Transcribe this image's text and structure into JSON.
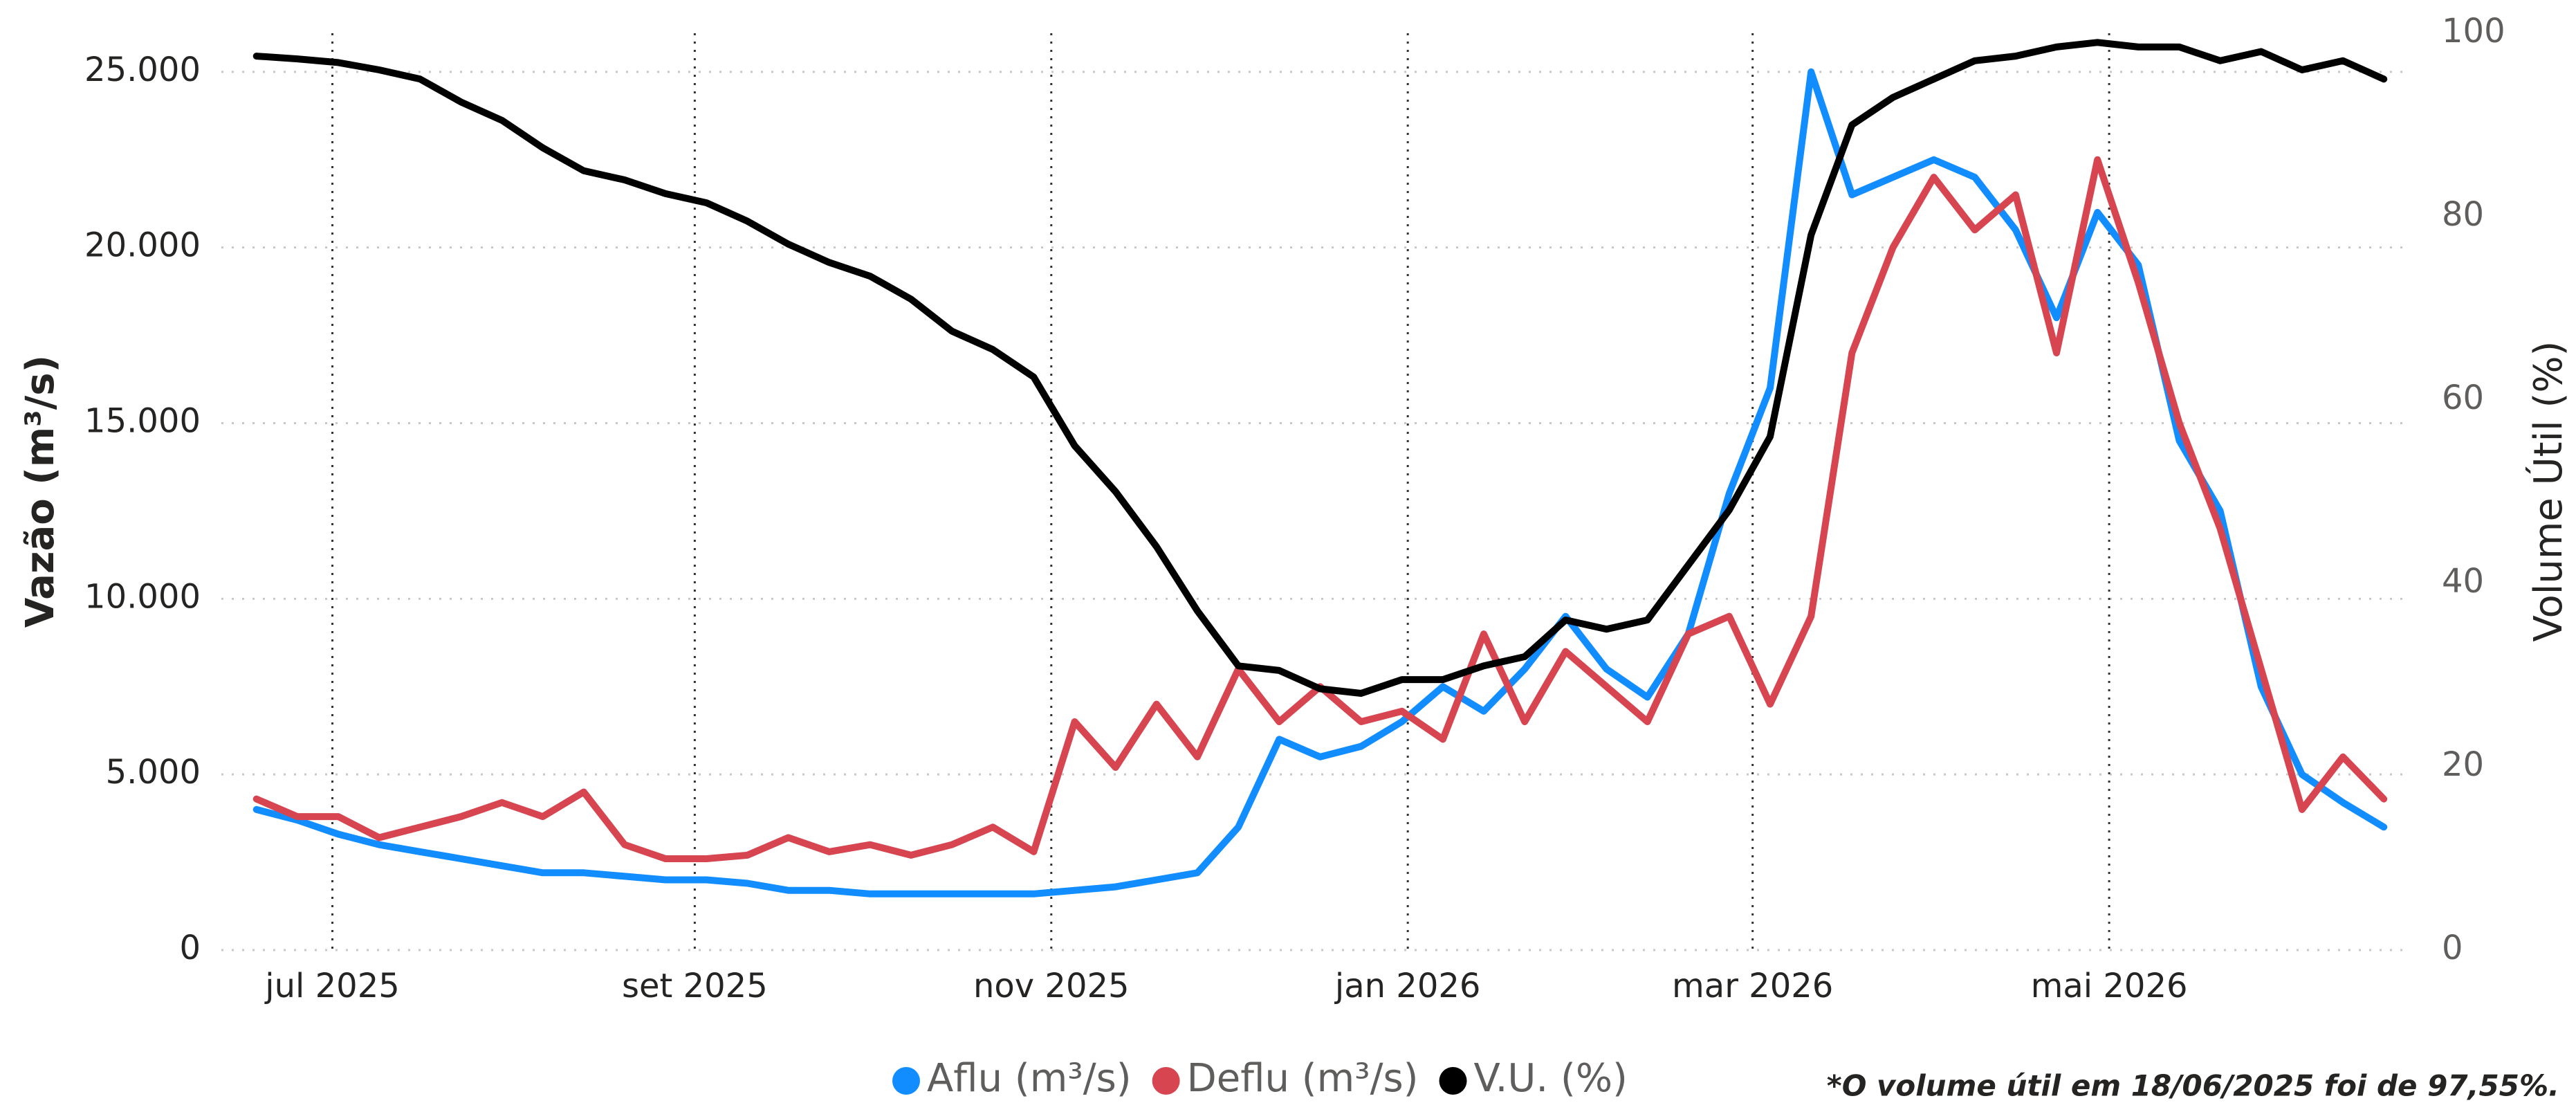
{
  "chart_data": {
    "type": "line",
    "x": [
      "2025-06-18",
      "2025-06-25",
      "2025-07-02",
      "2025-07-09",
      "2025-07-16",
      "2025-07-23",
      "2025-07-30",
      "2025-08-06",
      "2025-08-13",
      "2025-08-20",
      "2025-08-27",
      "2025-09-03",
      "2025-09-10",
      "2025-09-17",
      "2025-09-24",
      "2025-10-01",
      "2025-10-08",
      "2025-10-15",
      "2025-10-22",
      "2025-10-29",
      "2025-11-05",
      "2025-11-12",
      "2025-11-19",
      "2025-11-26",
      "2025-12-03",
      "2025-12-10",
      "2025-12-17",
      "2025-12-24",
      "2025-12-31",
      "2026-01-07",
      "2026-01-14",
      "2026-01-21",
      "2026-01-28",
      "2026-02-04",
      "2026-02-11",
      "2026-02-18",
      "2026-02-25",
      "2026-03-04",
      "2026-03-11",
      "2026-03-18",
      "2026-03-25",
      "2026-04-01",
      "2026-04-08",
      "2026-04-15",
      "2026-04-22",
      "2026-04-29",
      "2026-05-06",
      "2026-05-13",
      "2026-05-20",
      "2026-05-27",
      "2026-06-03",
      "2026-06-10",
      "2026-06-17"
    ],
    "series": [
      {
        "name": "Aflu (m³/s)",
        "color": "#118DFF",
        "values": [
          4000,
          3700,
          3300,
          3000,
          2800,
          2600,
          2400,
          2200,
          2200,
          2100,
          2000,
          2000,
          1900,
          1700,
          1700,
          1600,
          1600,
          1600,
          1600,
          1600,
          1700,
          1800,
          2000,
          2200,
          3500,
          6000,
          5500,
          5800,
          6500,
          7500,
          6800,
          8000,
          9500,
          8000,
          7200,
          9000,
          13000,
          16000,
          25000,
          21500,
          22000,
          22500,
          22000,
          20500,
          18000,
          21000,
          19500,
          14500,
          12500,
          7500,
          5000,
          4200,
          3500
        ]
      },
      {
        "name": "Deflu (m³/s)",
        "color": "#D64550",
        "values": [
          4300,
          3800,
          3800,
          3200,
          3500,
          3800,
          4200,
          3800,
          4500,
          3000,
          2600,
          2600,
          2700,
          3200,
          2800,
          3000,
          2700,
          3000,
          3500,
          2800,
          6500,
          5200,
          7000,
          5500,
          8000,
          6500,
          7500,
          6500,
          6800,
          6000,
          9000,
          6500,
          8500,
          7500,
          6500,
          9000,
          9500,
          7000,
          9500,
          17000,
          20000,
          22000,
          20500,
          21500,
          17000,
          22500,
          19000,
          15000,
          12000,
          8000,
          4000,
          5500,
          4300
        ]
      },
      {
        "name": "V.U. (%)",
        "color": "#000000",
        "axis": "y2",
        "values": [
          97.5,
          97.2,
          96.8,
          96,
          95,
          92.5,
          90.5,
          87.5,
          85,
          84,
          82.5,
          81.5,
          79.5,
          77,
          75,
          73.5,
          71,
          67.5,
          65.5,
          62.5,
          55,
          50,
          44,
          37,
          31,
          30.5,
          28.5,
          28,
          29.5,
          29.5,
          31,
          32,
          36,
          35,
          36,
          42,
          48,
          56,
          78,
          90,
          93,
          95,
          97,
          97.5,
          98.5,
          99,
          98.5,
          98.5,
          97,
          98,
          96,
          97,
          95
        ]
      }
    ],
    "xlim": [
      "2025-06-12",
      "2026-06-21"
    ],
    "xticks": [
      {
        "value": "2025-07-01",
        "label": "jul 2025"
      },
      {
        "value": "2025-09-01",
        "label": "set 2025"
      },
      {
        "value": "2025-11-01",
        "label": "nov 2025"
      },
      {
        "value": "2026-01-01",
        "label": "jan 2026"
      },
      {
        "value": "2026-03-01",
        "label": "mar 2026"
      },
      {
        "value": "2026-05-01",
        "label": "mai 2026"
      }
    ],
    "ylim": [
      0,
      26100
    ],
    "yticks": [
      0,
      {
        "value": 5000,
        "label": "5.000"
      },
      {
        "value": 10000,
        "label": "10.000"
      },
      {
        "value": 15000,
        "label": "15.000"
      },
      {
        "value": 20000,
        "label": "20.000"
      },
      {
        "value": 25000,
        "label": "25.000"
      }
    ],
    "y2lim": [
      0,
      100
    ],
    "y2ticks": [
      0,
      20,
      40,
      60,
      80,
      100
    ],
    "ylabel": "Vazão (m³/s)",
    "y2label": "Volume Útil (%)",
    "annotation": "*O volume útil em 18/06/2025 foi de 97,55%.",
    "grid": true,
    "legend": "bottom"
  }
}
